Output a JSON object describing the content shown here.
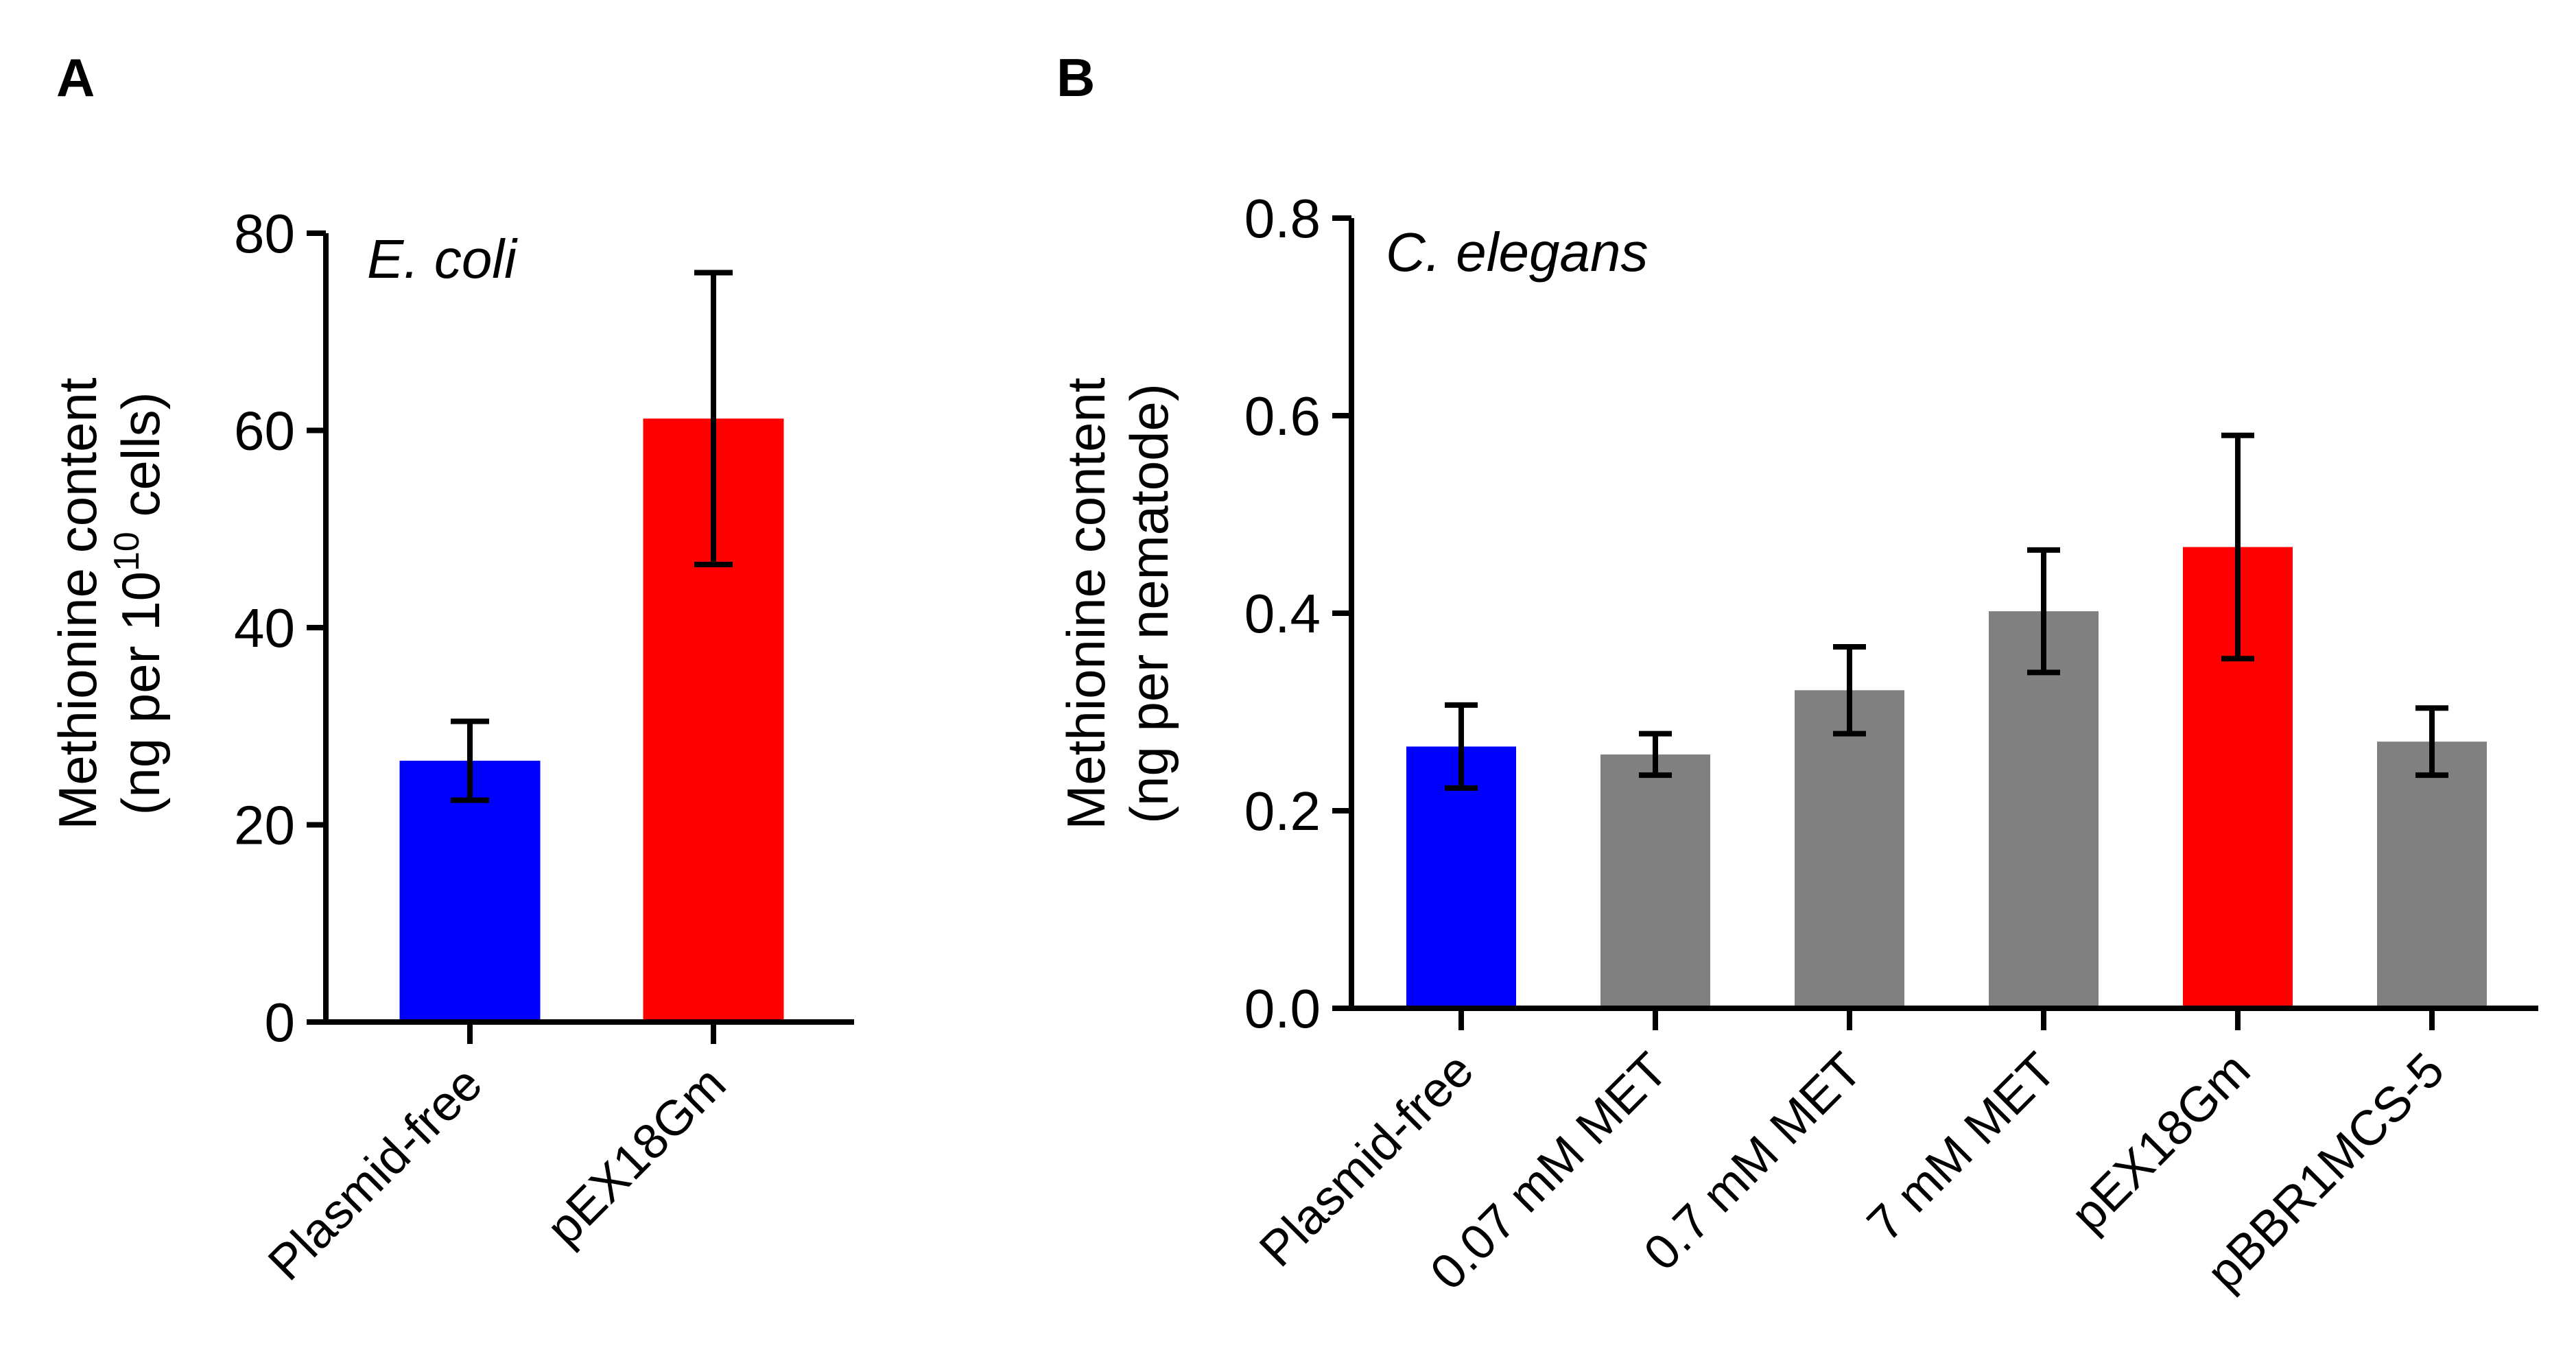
{
  "chart_data": [
    {
      "type": "bar",
      "panel_label": "A",
      "annotation": "E. coli",
      "categories": [
        "Plasmid-free",
        "pEX18Gm"
      ],
      "values": [
        26.5,
        61.2
      ],
      "errors": [
        4.0,
        14.8
      ],
      "colors": [
        "#0000ff",
        "#ff0000"
      ],
      "ylim": [
        0,
        80
      ],
      "yticks": [
        "0",
        "20",
        "40",
        "60",
        "80"
      ],
      "ytick_values": [
        0,
        20,
        40,
        60,
        80
      ],
      "ylabel_line1": "Methionine content",
      "ylabel_line2_prefix": "(ng per 10",
      "ylabel_line2_sup": "10",
      "ylabel_line2_suffix": " cells)"
    },
    {
      "type": "bar",
      "panel_label": "B",
      "annotation": "C. elegans",
      "categories": [
        "Plasmid-free",
        "0.07 mM MET",
        "0.7 mM MET",
        "7 mM MET",
        "pEX18Gm",
        "pBBR1MCS-5"
      ],
      "values": [
        0.265,
        0.257,
        0.322,
        0.402,
        0.467,
        0.27
      ],
      "errors": [
        0.042,
        0.021,
        0.044,
        0.062,
        0.113,
        0.034
      ],
      "colors": [
        "#0000ff",
        "#808080",
        "#808080",
        "#808080",
        "#ff0000",
        "#808080"
      ],
      "ylim": [
        0,
        0.8
      ],
      "yticks": [
        "0.0",
        "0.2",
        "0.4",
        "0.6",
        "0.8"
      ],
      "ytick_values": [
        0,
        0.2,
        0.4,
        0.6,
        0.8
      ],
      "ylabel_line1": "Methionine content",
      "ylabel_line2": "(ng per nematode)"
    }
  ]
}
